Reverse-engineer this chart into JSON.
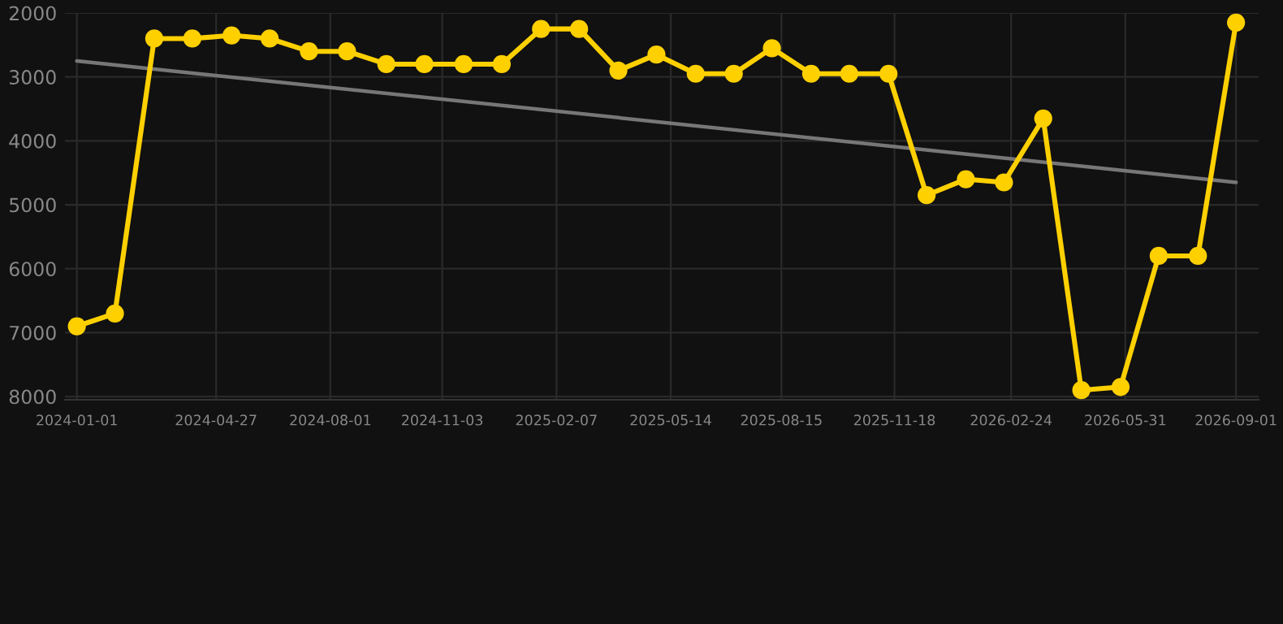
{
  "chart_data": {
    "type": "line",
    "x": [
      "2024-01-01",
      "2024-02-02",
      "2024-03-06",
      "2024-04-07",
      "2024-05-10",
      "2024-06-11",
      "2024-07-14",
      "2024-08-15",
      "2024-09-17",
      "2024-10-19",
      "2024-11-21",
      "2024-12-23",
      "2025-01-25",
      "2025-02-26",
      "2025-03-31",
      "2025-05-02",
      "2025-06-04",
      "2025-07-06",
      "2025-08-07",
      "2025-09-09",
      "2025-10-11",
      "2025-11-13",
      "2025-12-15",
      "2026-01-17",
      "2026-02-18",
      "2026-03-23",
      "2026-04-24",
      "2026-05-27",
      "2026-06-28",
      "2026-07-31",
      "2026-09-01"
    ],
    "series": [
      {
        "color": "#ffd000",
        "marker": "circle",
        "values": [
          6900,
          6700,
          2400,
          2400,
          2350,
          2400,
          2600,
          2600,
          2800,
          2800,
          2800,
          2800,
          2250,
          2250,
          2900,
          2650,
          2950,
          2950,
          2550,
          2950,
          2950,
          2950,
          4850,
          4600,
          4650,
          3650,
          7900,
          7850,
          5800,
          5800,
          2150
        ]
      },
      {
        "type": "line",
        "color": "#777777",
        "marker": "none",
        "x": [
          "2024-01-01",
          "2026-09-01"
        ],
        "values": [
          2750,
          4650
        ]
      }
    ],
    "xlim": [
      "2023-12-22",
      "2026-09-20"
    ],
    "xticks": [
      "2024-01-01",
      "2024-04-27",
      "2024-08-01",
      "2024-11-03",
      "2025-02-07",
      "2025-05-14",
      "2025-08-15",
      "2025-11-18",
      "2026-02-24",
      "2026-05-31",
      "2026-09-01"
    ],
    "ylim": [
      8050,
      2000
    ],
    "yticks": [
      2000,
      3000,
      4000,
      5000,
      6000,
      7000,
      8000
    ],
    "grid": true,
    "legend": false
  }
}
